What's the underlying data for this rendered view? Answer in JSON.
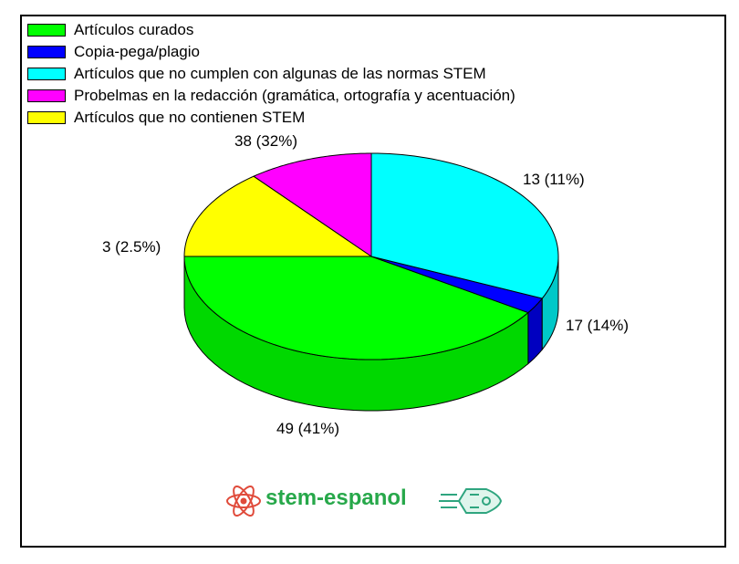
{
  "chart_data": {
    "type": "pie",
    "three_d": true,
    "legend_position": "top-left",
    "slices": [
      {
        "label": "Artículos curados",
        "value": 49,
        "display": "49 (41%)",
        "color": "#00ff00",
        "side": "#00d800"
      },
      {
        "label": "Copia-pega/plagio",
        "value": 3,
        "display": "3 (2.5%)",
        "color": "#0000ff",
        "side": "#0000c0"
      },
      {
        "label": "Artículos que no cumplen con algunas de las normas STEM",
        "value": 38,
        "display": "38 (32%)",
        "color": "#00ffff",
        "side": "#00c8c8"
      },
      {
        "label": "Probelmas en la redacción (gramática, ortografía y acentuación)",
        "value": 13,
        "display": "13 (11%)",
        "color": "#ff00ff",
        "side": "#c800c8"
      },
      {
        "label": "Artículos que no contienen STEM",
        "value": 17,
        "display": "17 (14%)",
        "color": "#ffff00",
        "side": "#e0e000"
      }
    ]
  },
  "logo": {
    "text": "stem-espanol",
    "atom_icon": "atom-icon",
    "rocket_icon": "rocket-icon",
    "accent": "#27a84a",
    "atom_color": "#e04a3a"
  }
}
